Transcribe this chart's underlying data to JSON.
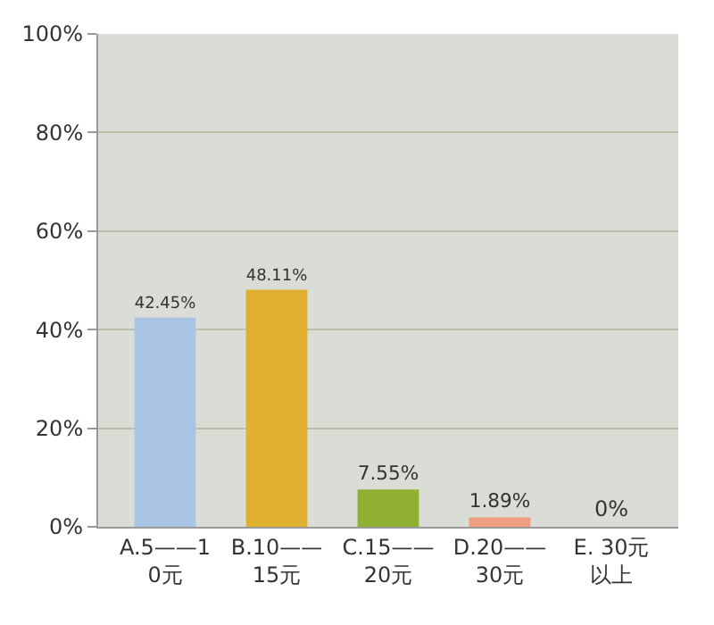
{
  "chart_data": {
    "type": "bar",
    "categories": [
      "A.5——10元",
      "B.10——15元",
      "C.15——20元",
      "D.20——30元",
      "E. 30元以上"
    ],
    "values": [
      42.45,
      48.11,
      7.55,
      1.89,
      0
    ],
    "colors": [
      "#a9c4e4",
      "#e0b030",
      "#8fb030",
      "#f0a080",
      "#40b0b0"
    ],
    "value_labels": [
      "42.45%",
      "48.11%",
      "7.55%",
      "1.89%",
      "0%"
    ],
    "ylim": [
      0,
      100
    ],
    "yticks": [
      {
        "value": 0,
        "label": "0%"
      },
      {
        "value": 20,
        "label": "20%"
      },
      {
        "value": 40,
        "label": "40%"
      },
      {
        "value": 60,
        "label": "60%"
      },
      {
        "value": 80,
        "label": "80%"
      },
      {
        "value": 100,
        "label": "100%"
      }
    ],
    "grid": "y",
    "legend": false
  }
}
